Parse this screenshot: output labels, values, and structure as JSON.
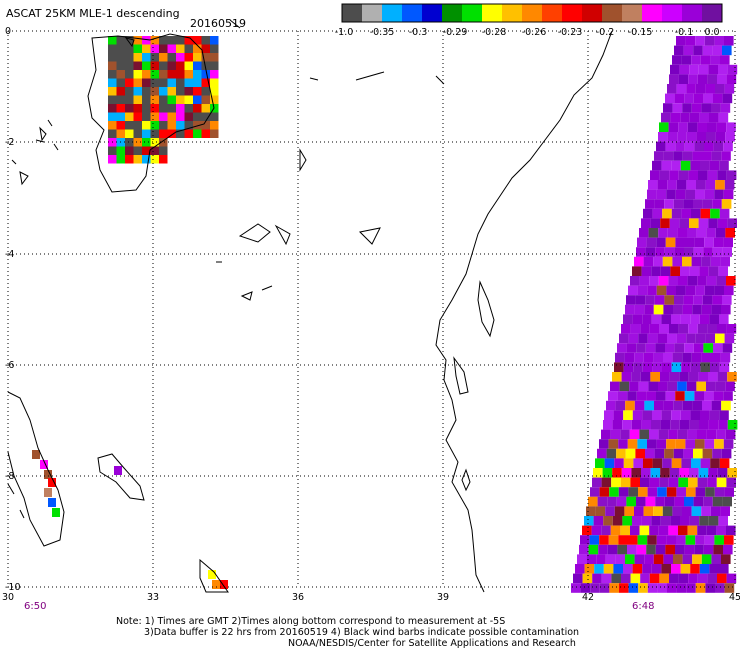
{
  "header": {
    "title": "ASCAT 25KM MLE-1 descending",
    "date": "20160519"
  },
  "colorbar": {
    "colors": [
      "#4d4d4d",
      "#b0b0b0",
      "#00b0ff",
      "#0058ff",
      "#0000d0",
      "#009000",
      "#00e000",
      "#ffff00",
      "#ffc000",
      "#ff8800",
      "#ff4000",
      "#ff0000",
      "#d00000",
      "#a0522d",
      "#c08060",
      "#ff00ff",
      "#cc00ff",
      "#9a00d8",
      "#7010a0"
    ],
    "labels": [
      "-1.0",
      "-0.35",
      "-0.3",
      "-0.29",
      "-0.28",
      "-0.26",
      "-0.23",
      "-0.2",
      "-0.15",
      "-0.1",
      "0.0"
    ]
  },
  "axes": {
    "lat_ticks": [
      "0",
      "-2",
      "-4",
      "-6",
      "-8",
      "-10"
    ],
    "lon_ticks": [
      "30",
      "33",
      "36",
      "39",
      "42",
      "45"
    ]
  },
  "times": {
    "left": "6:50",
    "right": "6:48"
  },
  "notes": {
    "line1": "Note: 1) Times are GMT 2)Times along bottom correspond to measurement at -5S",
    "line2": "3)Data buffer is 22 hrs from 20160519 4) Black wind barbs indicate possible contamination",
    "line3": "NOAA/NESDIS/Center for Satellite Applications and Research"
  }
}
